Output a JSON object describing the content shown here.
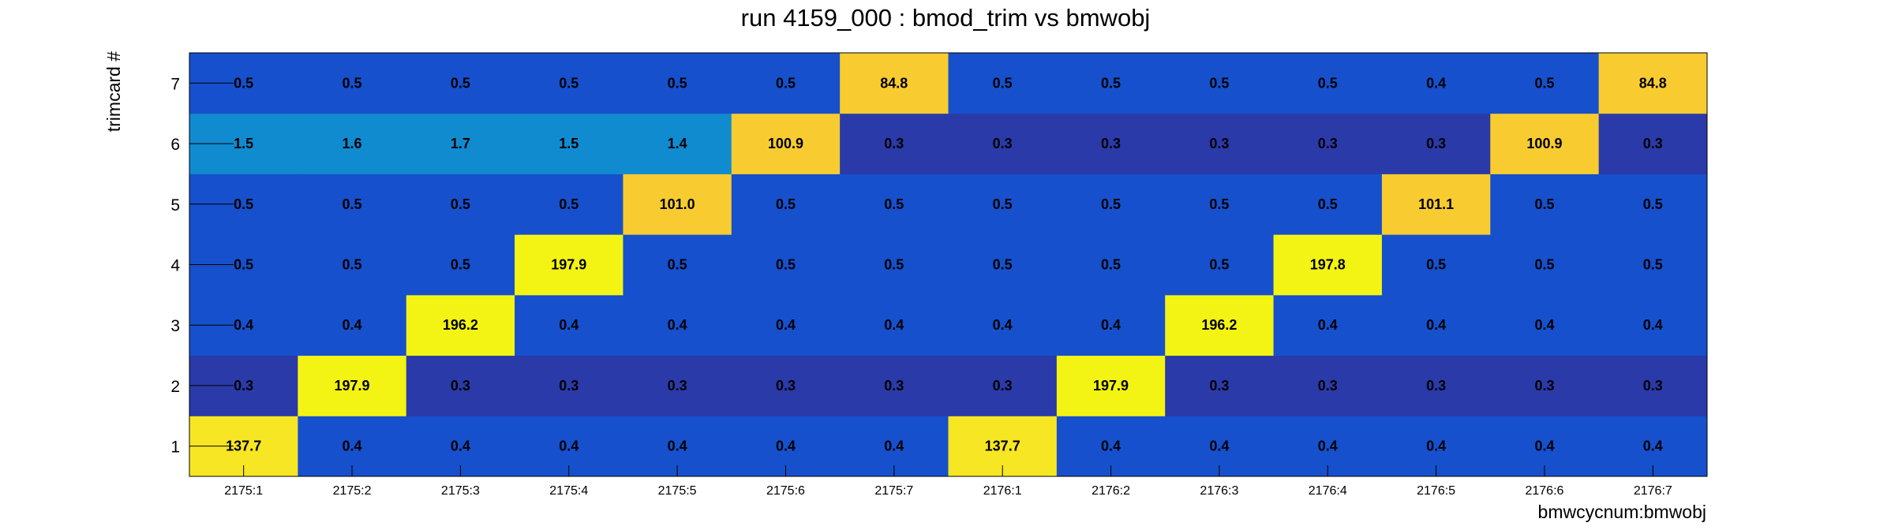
{
  "chart_data": {
    "type": "heatmap",
    "title": "run 4159_000 : bmod_trim vs bmwobj",
    "xlabel": "bmwcycnum:bmwobj",
    "ylabel": "trimcard #",
    "x_categories": [
      "2175:1",
      "2175:2",
      "2175:3",
      "2175:4",
      "2175:5",
      "2175:6",
      "2175:7",
      "2176:1",
      "2176:2",
      "2176:3",
      "2176:4",
      "2176:5",
      "2176:6",
      "2176:7"
    ],
    "y_categories": [
      "1",
      "2",
      "3",
      "4",
      "5",
      "6",
      "7"
    ],
    "values": [
      [
        137.7,
        0.4,
        0.4,
        0.4,
        0.4,
        0.4,
        0.4,
        137.7,
        0.4,
        0.4,
        0.4,
        0.4,
        0.4,
        0.4
      ],
      [
        0.3,
        197.9,
        0.3,
        0.3,
        0.3,
        0.3,
        0.3,
        0.3,
        197.9,
        0.3,
        0.3,
        0.3,
        0.3,
        0.3
      ],
      [
        0.4,
        0.4,
        196.2,
        0.4,
        0.4,
        0.4,
        0.4,
        0.4,
        0.4,
        196.2,
        0.4,
        0.4,
        0.4,
        0.4
      ],
      [
        0.5,
        0.5,
        0.5,
        197.9,
        0.5,
        0.5,
        0.5,
        0.5,
        0.5,
        0.5,
        197.8,
        0.5,
        0.5,
        0.5
      ],
      [
        0.5,
        0.5,
        0.5,
        0.5,
        101.0,
        0.5,
        0.5,
        0.5,
        0.5,
        0.5,
        0.5,
        101.1,
        0.5,
        0.5
      ],
      [
        1.5,
        1.6,
        1.7,
        1.5,
        1.4,
        100.9,
        0.3,
        0.3,
        0.3,
        0.3,
        0.3,
        0.3,
        100.9,
        0.3
      ],
      [
        0.5,
        0.5,
        0.5,
        0.5,
        0.5,
        0.5,
        84.8,
        0.5,
        0.5,
        0.5,
        0.5,
        0.4,
        0.5,
        84.8
      ]
    ],
    "value_labels": [
      [
        "137.7",
        "0.4",
        "0.4",
        "0.4",
        "0.4",
        "0.4",
        "0.4",
        "137.7",
        "0.4",
        "0.4",
        "0.4",
        "0.4",
        "0.4",
        "0.4"
      ],
      [
        "0.3",
        "197.9",
        "0.3",
        "0.3",
        "0.3",
        "0.3",
        "0.3",
        "0.3",
        "197.9",
        "0.3",
        "0.3",
        "0.3",
        "0.3",
        "0.3"
      ],
      [
        "0.4",
        "0.4",
        "196.2",
        "0.4",
        "0.4",
        "0.4",
        "0.4",
        "0.4",
        "0.4",
        "196.2",
        "0.4",
        "0.4",
        "0.4",
        "0.4"
      ],
      [
        "0.5",
        "0.5",
        "0.5",
        "197.9",
        "0.5",
        "0.5",
        "0.5",
        "0.5",
        "0.5",
        "0.5",
        "197.8",
        "0.5",
        "0.5",
        "0.5"
      ],
      [
        "0.5",
        "0.5",
        "0.5",
        "0.5",
        "101.0",
        "0.5",
        "0.5",
        "0.5",
        "0.5",
        "0.5",
        "0.5",
        "101.1",
        "0.5",
        "0.5"
      ],
      [
        "1.5",
        "1.6",
        "1.7",
        "1.5",
        "1.4",
        "100.9",
        "0.3",
        "0.3",
        "0.3",
        "0.3",
        "0.3",
        "0.3",
        "100.9",
        "0.3"
      ],
      [
        "0.5",
        "0.5",
        "0.5",
        "0.5",
        "0.5",
        "0.5",
        "84.8",
        "0.5",
        "0.5",
        "0.5",
        "0.5",
        "0.4",
        "0.5",
        "84.8"
      ]
    ],
    "colors": {
      "low": "#2a3aa8",
      "base": "#1650cc",
      "mid_low": "#108bd0",
      "mid": "#f8cc30",
      "high": "#f4f414",
      "ceiling": "#f7e623"
    }
  }
}
